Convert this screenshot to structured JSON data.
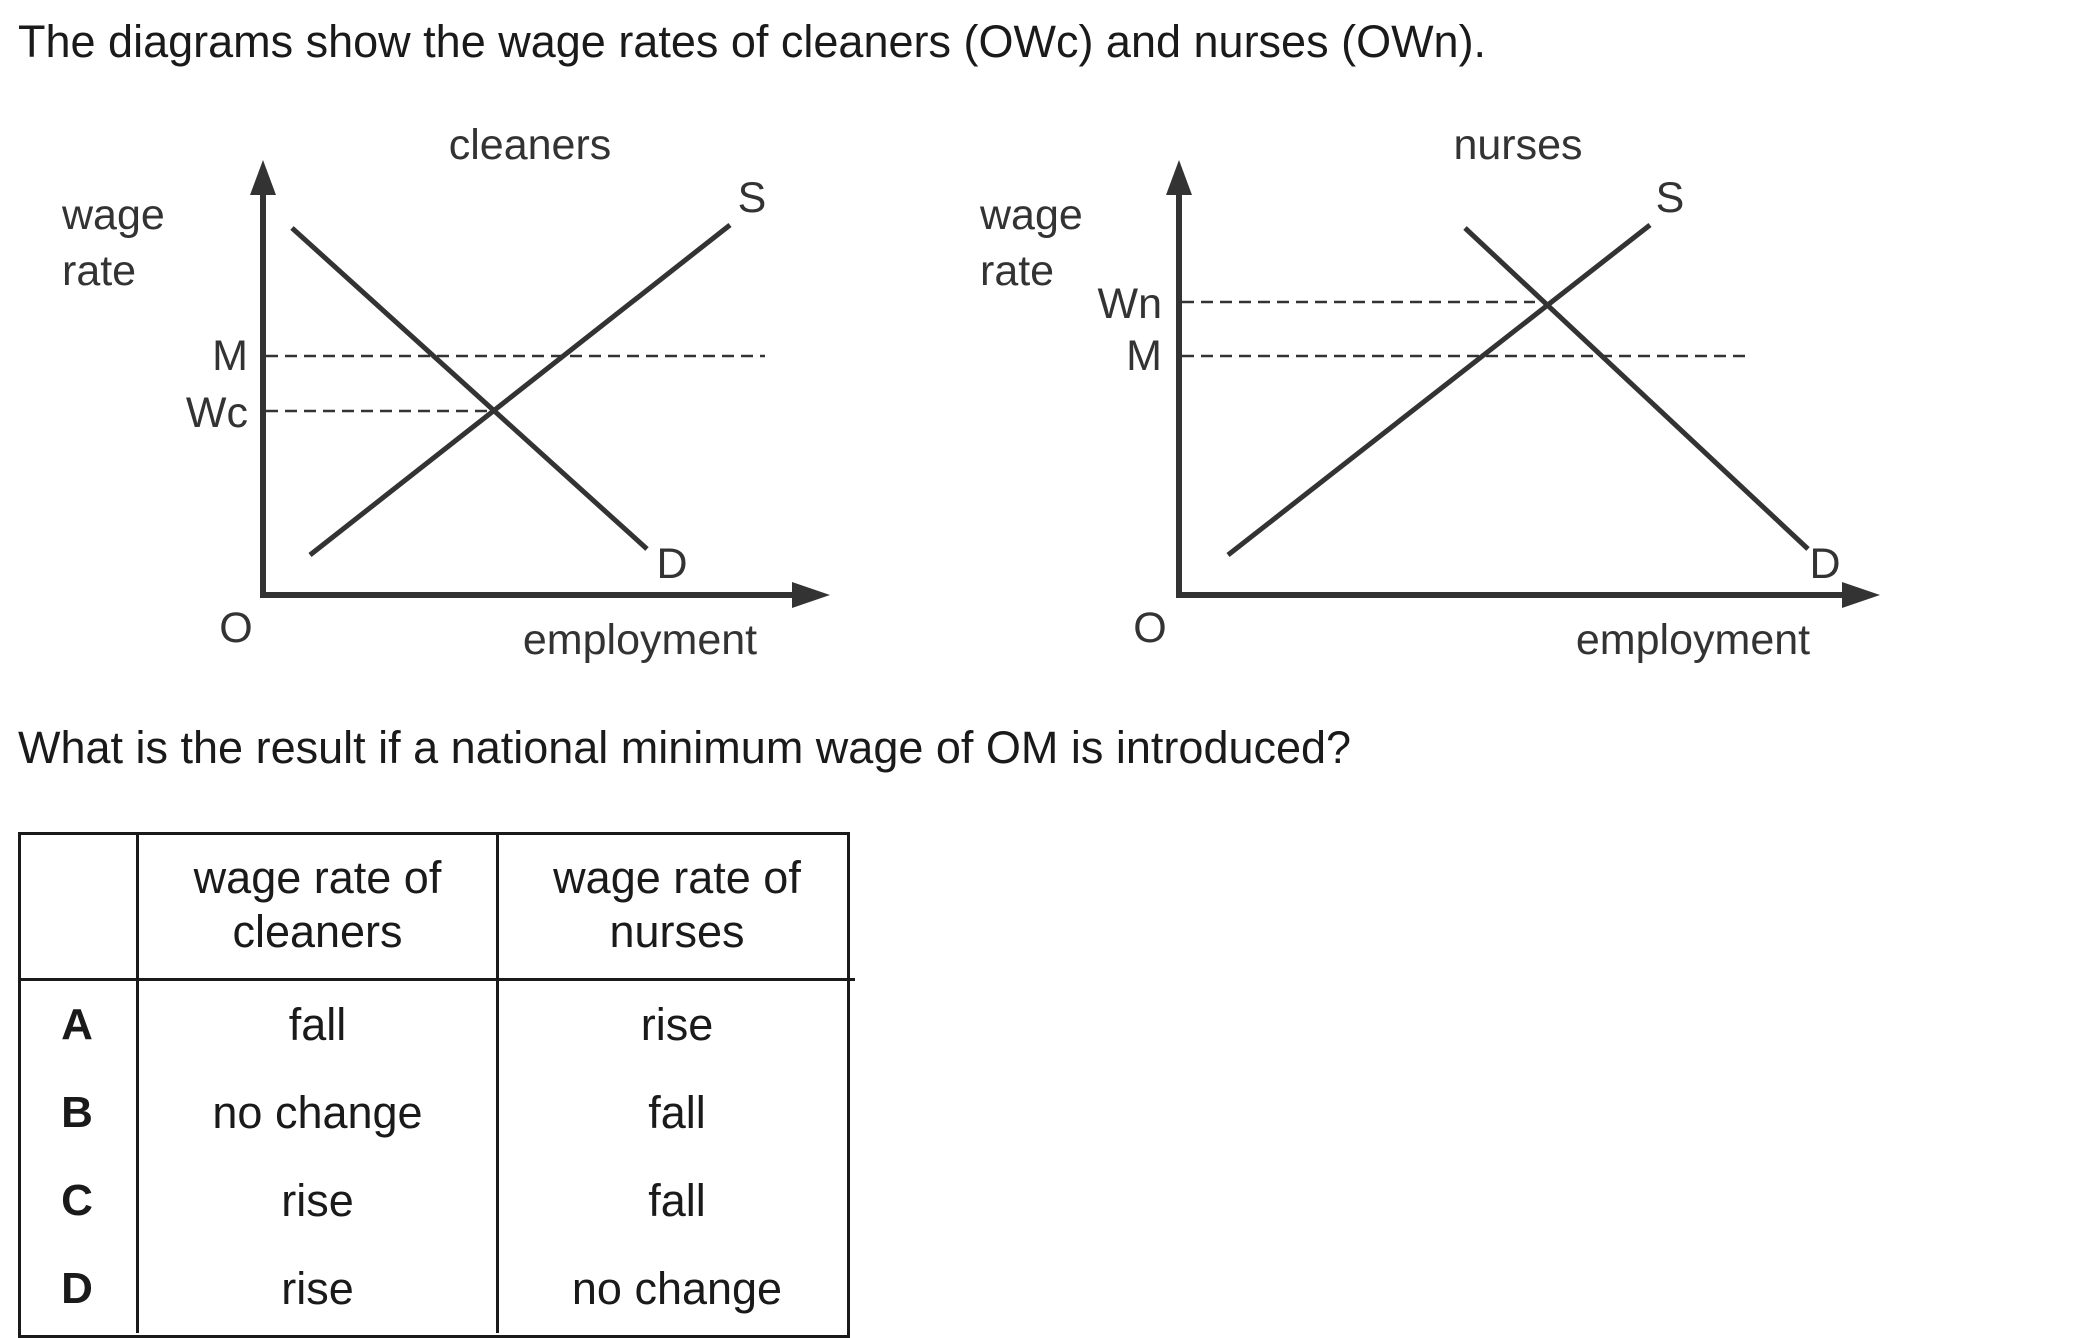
{
  "intro_text": "The diagrams show the wage rates of cleaners (OWc) and nurses (OWn).",
  "diagrams": [
    {
      "title": "cleaners",
      "y_axis_label_line1": "wage",
      "y_axis_label_line2": "rate",
      "x_axis_label": "employment",
      "origin_label": "O",
      "supply_label": "S",
      "demand_label": "D",
      "upper_wage_label": "M",
      "lower_wage_label": "Wc"
    },
    {
      "title": "nurses",
      "y_axis_label_line1": "wage",
      "y_axis_label_line2": "rate",
      "x_axis_label": "employment",
      "origin_label": "O",
      "supply_label": "S",
      "demand_label": "D",
      "upper_wage_label": "Wn",
      "lower_wage_label": "M"
    }
  ],
  "question_text": "What is the result if a national minimum wage of OM is introduced?",
  "table": {
    "headers": [
      "",
      "wage rate of cleaners",
      "wage rate of nurses"
    ],
    "rows": [
      {
        "letter": "A",
        "cleaners": "fall",
        "nurses": "rise"
      },
      {
        "letter": "B",
        "cleaners": "no change",
        "nurses": "fall"
      },
      {
        "letter": "C",
        "cleaners": "rise",
        "nurses": "fall"
      },
      {
        "letter": "D",
        "cleaners": "rise",
        "nurses": "no change"
      }
    ]
  }
}
